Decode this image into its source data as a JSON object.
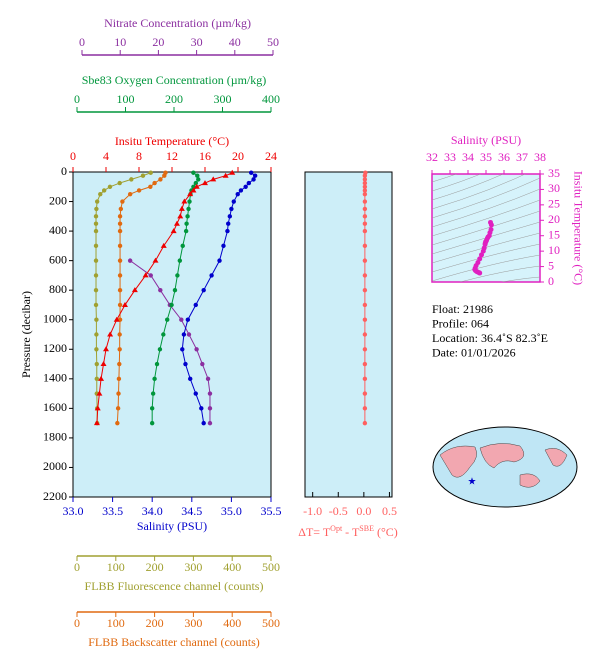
{
  "chart_data": [
    {
      "type": "profile",
      "ylabel": "Pressure (decibar)",
      "ylim": [
        0,
        2200
      ],
      "yticks": [
        0,
        200,
        400,
        600,
        800,
        1000,
        1200,
        1400,
        1600,
        1800,
        2000,
        2200
      ],
      "pressure": [
        5,
        25,
        50,
        75,
        100,
        125,
        150,
        200,
        250,
        300,
        350,
        400,
        500,
        600,
        700,
        800,
        900,
        1000,
        1100,
        1200,
        1300,
        1400,
        1500,
        1600,
        1700
      ],
      "axes": [
        {
          "label": "Nitrate Concentration (µm/kg)",
          "color": "#8b2fa0",
          "lim": [
            0,
            50
          ],
          "ticks": [
            0,
            10,
            20,
            30,
            40,
            50
          ]
        },
        {
          "label": "Sbe83 Oxygen Concentration (µm/kg)",
          "color": "#00963c",
          "lim": [
            0,
            400
          ],
          "ticks": [
            0,
            100,
            200,
            300,
            400
          ]
        },
        {
          "label": "Insitu Temperature (°C)",
          "color": "#ee0000",
          "lim": [
            0,
            24
          ],
          "ticks": [
            0,
            4,
            8,
            12,
            16,
            20,
            24
          ]
        },
        {
          "label": "Salinity (PSU)",
          "color": "#0000cc",
          "lim": [
            33,
            35.5
          ],
          "ticks": [
            {
              "value": 33,
              "label": "33.0"
            },
            {
              "value": 33.5,
              "label": "33.5"
            },
            {
              "value": 34,
              "label": "34.0"
            },
            {
              "value": 34.5,
              "label": "34.5"
            },
            {
              "value": 35,
              "label": "35.0"
            },
            {
              "value": 35.5,
              "label": "35.5"
            }
          ]
        },
        {
          "label": "FLBB Fluorescence channel (counts)",
          "color": "#a0a030",
          "lim": [
            0,
            500
          ],
          "ticks": [
            0,
            100,
            200,
            300,
            400,
            500
          ]
        },
        {
          "label": "FLBB Backscatter channel (counts)",
          "color": "#e06a10",
          "lim": [
            0,
            500
          ],
          "ticks": [
            0,
            100,
            200,
            300,
            400,
            500
          ]
        }
      ],
      "series": [
        {
          "axis": 4,
          "color": "#a0a030",
          "marker": "circle",
          "values": [
            190,
            170,
            140,
            110,
            85,
            70,
            60,
            52,
            50,
            49,
            49,
            49,
            49,
            49,
            49,
            49,
            49,
            50,
            50,
            50,
            51,
            51,
            51,
            52,
            52
          ]
        },
        {
          "axis": 5,
          "color": "#e06a10",
          "marker": "circle",
          "values": [
            228,
            225,
            215,
            200,
            189,
            160,
            137,
            117,
            113,
            111,
            111,
            111,
            111,
            111,
            111,
            111,
            111,
            111,
            110,
            110,
            109,
            108,
            107,
            106,
            104
          ]
        },
        {
          "axis": 0,
          "color": "#8b2fa0",
          "marker": "circle",
          "values": [
            null,
            null,
            null,
            null,
            null,
            null,
            null,
            null,
            null,
            null,
            null,
            null,
            null,
            12.6,
            18,
            20.5,
            23,
            26,
            28,
            30,
            31.5,
            33,
            33.5,
            33.5,
            33.5
          ]
        },
        {
          "axis": 1,
          "color": "#00963c",
          "marker": "circle",
          "values": [
            240,
            248,
            250,
            245,
            240,
            236,
            234,
            232,
            230,
            228,
            226,
            225,
            218,
            212,
            207,
            202,
            195,
            186,
            178,
            171,
            165,
            160,
            157,
            155,
            155
          ]
        },
        {
          "axis": 2,
          "color": "#ee0000",
          "marker": "triangle",
          "values": [
            19.3,
            18.5,
            17,
            16,
            15,
            14.6,
            14.2,
            13.5,
            13.2,
            13,
            12.6,
            12.2,
            11,
            10,
            8.8,
            7.5,
            6.3,
            5.3,
            4.5,
            4,
            3.7,
            3.4,
            3.2,
            3,
            2.9
          ]
        },
        {
          "axis": 3,
          "color": "#0000cc",
          "marker": "circle",
          "values": [
            35.25,
            35.3,
            35.28,
            35.22,
            35.18,
            35.12,
            35.08,
            35.03,
            35,
            34.98,
            34.96,
            34.95,
            34.9,
            34.85,
            34.75,
            34.65,
            34.55,
            34.45,
            34.4,
            34.38,
            34.42,
            34.48,
            34.55,
            34.62,
            34.65
          ]
        }
      ]
    },
    {
      "type": "delta",
      "xlabel": [
        "ΔT= T",
        "Opt",
        " - T",
        "SBE",
        " (°C)"
      ],
      "color": "#ff6060",
      "xlim": [
        -1.15,
        0.55
      ],
      "xticks": [
        {
          "value": -1,
          "label": "-1.0"
        },
        {
          "value": -0.5,
          "label": "-0.5"
        },
        {
          "value": 0,
          "label": "0.0"
        },
        {
          "value": 0.5,
          "label": "0.5"
        }
      ],
      "values": [
        0.03,
        0.02,
        0.02,
        0.02,
        0.02,
        0.02,
        0.02,
        0.02,
        0.02,
        0.02,
        0.02,
        0.02,
        0.02,
        0.02,
        0.02,
        0.02,
        0.02,
        0.02,
        0.02,
        0.02,
        0.02,
        0.02,
        0.02,
        0.02,
        0.02
      ]
    },
    {
      "type": "ts",
      "xlabel": "Salinity (PSU)",
      "ylabel": "Insitu Temperature (°C)",
      "color": "#e020c0",
      "xlim": [
        32,
        38
      ],
      "xticks": [
        32,
        33,
        34,
        35,
        36,
        37,
        38
      ],
      "ylim": [
        0,
        35
      ],
      "yticks": [
        0,
        5,
        10,
        15,
        20,
        25,
        30,
        35
      ]
    }
  ],
  "info": [
    "Float:  21986",
    "Profile:  064",
    "Location:  36.4˚S  82.3˚E",
    "Date:  01/01/2026"
  ]
}
